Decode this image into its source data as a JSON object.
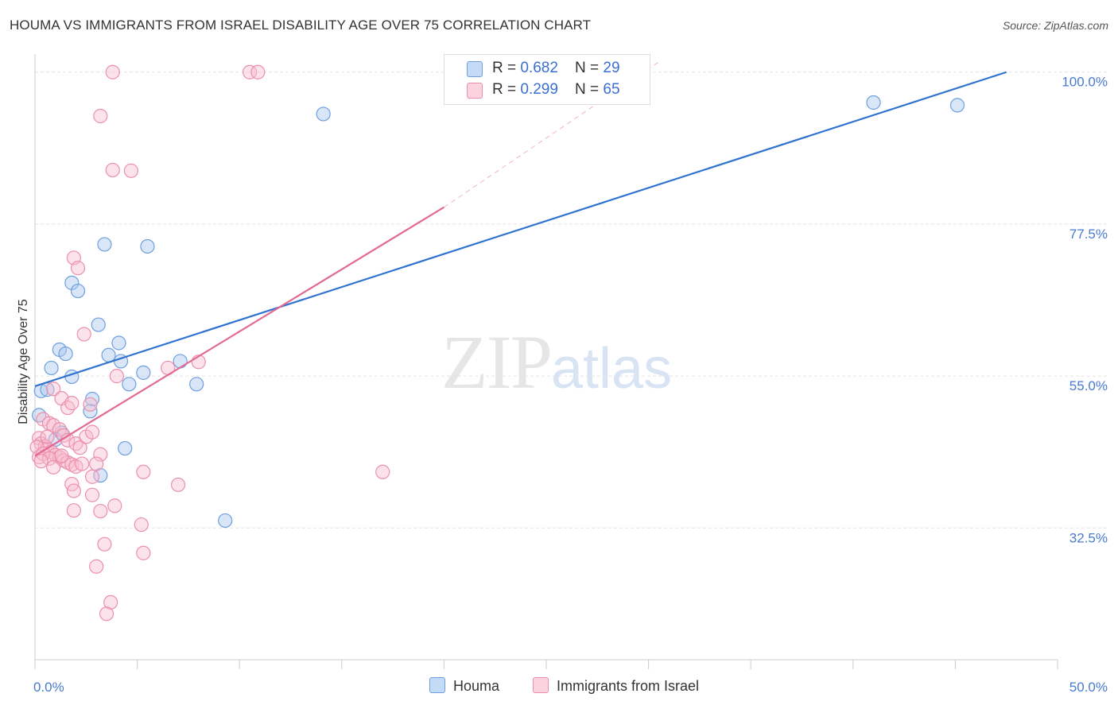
{
  "title": "HOUMA VS IMMIGRANTS FROM ISRAEL DISABILITY AGE OVER 75 CORRELATION CHART",
  "source": "Source: ZipAtlas.com",
  "watermark": {
    "zip": "ZIP",
    "atlas": "atlas"
  },
  "legend": {
    "houma": {
      "r_label": "R = ",
      "r_value": "0.682",
      "n_label": "N = ",
      "n_value": "29"
    },
    "israel": {
      "r_label": "R = ",
      "r_value": "0.299",
      "n_label": "N = ",
      "n_value": "65"
    }
  },
  "bottom_legend": {
    "houma": "Houma",
    "israel": "Immigrants from Israel"
  },
  "colors": {
    "houma_fill": "#a8c8f0",
    "houma_stroke": "#6f9fde",
    "houma_line": "#2f72d0",
    "israel_fill": "#f8bfd0",
    "israel_stroke": "#ec8fac",
    "israel_line": "#e26a93",
    "grid": "#e3e3e3",
    "axis_text": "#4a7bd0"
  },
  "chart_data": {
    "type": "scatter",
    "title": "HOUMA VS IMMIGRANTS FROM ISRAEL DISABILITY AGE OVER 75 CORRELATION CHART",
    "xlabel": "",
    "ylabel": "Disability Age Over 75",
    "xlim": [
      0,
      50
    ],
    "ylim": [
      13,
      101.5
    ],
    "x_tick_labels": [
      {
        "value": 0,
        "label": "0.0%"
      },
      {
        "value": 50,
        "label": "50.0%"
      }
    ],
    "y_tick_labels": [
      {
        "value": 100,
        "label": "100.0%"
      },
      {
        "value": 77.5,
        "label": "77.5%"
      },
      {
        "value": 55,
        "label": "55.0%"
      },
      {
        "value": 32.5,
        "label": "32.5%"
      }
    ],
    "grid": true,
    "series": [
      {
        "name": "Houma",
        "points": [
          [
            0.3,
            52.8
          ],
          [
            0.6,
            53.0
          ],
          [
            0.8,
            56.2
          ],
          [
            1.2,
            58.9
          ],
          [
            1.5,
            58.3
          ],
          [
            1.3,
            46.6
          ],
          [
            1.8,
            68.8
          ],
          [
            2.1,
            67.6
          ],
          [
            1.8,
            54.9
          ],
          [
            2.8,
            51.6
          ],
          [
            2.7,
            49.8
          ],
          [
            3.1,
            62.6
          ],
          [
            3.2,
            40.3
          ],
          [
            3.4,
            74.5
          ],
          [
            4.1,
            59.9
          ],
          [
            3.6,
            58.1
          ],
          [
            4.2,
            57.2
          ],
          [
            4.4,
            44.3
          ],
          [
            4.6,
            53.8
          ],
          [
            5.3,
            55.5
          ],
          [
            5.5,
            74.2
          ],
          [
            7.1,
            57.2
          ],
          [
            7.9,
            53.8
          ],
          [
            9.3,
            33.6
          ],
          [
            14.1,
            93.8
          ],
          [
            41.0,
            95.5
          ],
          [
            45.1,
            95.1
          ],
          [
            0.2,
            49.2
          ],
          [
            1.0,
            45.6
          ]
        ],
        "trend": [
          [
            0,
            53.5
          ],
          [
            47.5,
            100
          ]
        ]
      },
      {
        "name": "Immigrants from Israel",
        "points": [
          [
            3.8,
            100
          ],
          [
            10.5,
            100
          ],
          [
            10.9,
            100
          ],
          [
            3.2,
            93.5
          ],
          [
            3.8,
            85.5
          ],
          [
            4.7,
            85.4
          ],
          [
            1.9,
            72.5
          ],
          [
            2.1,
            71.0
          ],
          [
            2.4,
            61.2
          ],
          [
            4.0,
            55.0
          ],
          [
            6.5,
            56.2
          ],
          [
            8.0,
            57.1
          ],
          [
            0.9,
            53.1
          ],
          [
            1.3,
            51.7
          ],
          [
            1.6,
            50.3
          ],
          [
            1.8,
            51.0
          ],
          [
            2.7,
            50.8
          ],
          [
            0.4,
            48.6
          ],
          [
            0.7,
            48.0
          ],
          [
            0.9,
            47.7
          ],
          [
            1.2,
            47.1
          ],
          [
            1.4,
            46.2
          ],
          [
            1.6,
            45.5
          ],
          [
            2.0,
            45.0
          ],
          [
            2.2,
            44.4
          ],
          [
            2.5,
            46.0
          ],
          [
            2.8,
            46.7
          ],
          [
            0.2,
            45.8
          ],
          [
            0.3,
            45.0
          ],
          [
            0.5,
            44.6
          ],
          [
            0.6,
            44.2
          ],
          [
            0.8,
            43.8
          ],
          [
            1.0,
            43.3
          ],
          [
            1.2,
            43.0
          ],
          [
            1.4,
            42.5
          ],
          [
            1.6,
            42.2
          ],
          [
            1.8,
            41.9
          ],
          [
            2.0,
            41.6
          ],
          [
            2.3,
            42.0
          ],
          [
            0.1,
            44.5
          ],
          [
            0.2,
            43.0
          ],
          [
            0.4,
            43.5
          ],
          [
            0.7,
            42.8
          ],
          [
            0.9,
            41.5
          ],
          [
            3.2,
            43.4
          ],
          [
            3.0,
            42.0
          ],
          [
            2.8,
            40.1
          ],
          [
            1.8,
            39.0
          ],
          [
            1.9,
            38.0
          ],
          [
            2.8,
            37.4
          ],
          [
            1.9,
            35.1
          ],
          [
            3.2,
            35.0
          ],
          [
            3.9,
            35.8
          ],
          [
            5.3,
            40.8
          ],
          [
            7.0,
            38.9
          ],
          [
            17.0,
            40.8
          ],
          [
            5.2,
            33.0
          ],
          [
            5.3,
            28.8
          ],
          [
            3.4,
            30.1
          ],
          [
            3.0,
            26.8
          ],
          [
            3.7,
            21.5
          ],
          [
            3.5,
            19.8
          ],
          [
            0.3,
            42.4
          ],
          [
            1.3,
            43.2
          ],
          [
            0.6,
            46.0
          ]
        ],
        "trend": [
          [
            0,
            43.2
          ],
          [
            20,
            80.0
          ]
        ],
        "trend_extension": [
          [
            20,
            80.0
          ],
          [
            30.5,
            101.5
          ]
        ]
      }
    ]
  }
}
